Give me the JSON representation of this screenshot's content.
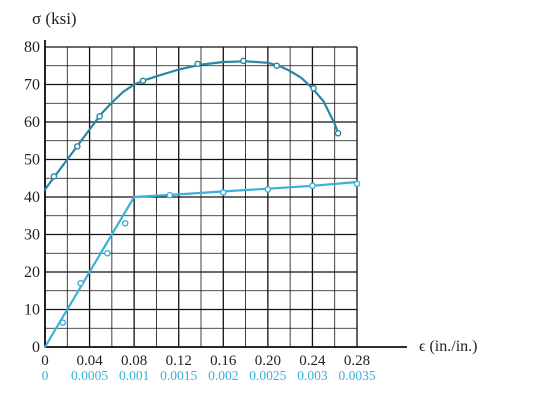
{
  "chart_data": {
    "type": "line",
    "ylabel": "σ (ksi)",
    "xlabel": "ϵ (in./in.)",
    "ylim": [
      0,
      80
    ],
    "yticks": [
      0,
      10,
      20,
      30,
      40,
      50,
      60,
      70,
      80
    ],
    "xlim_upper": [
      0,
      0.28
    ],
    "xticks_upper": [
      0,
      0.04,
      0.08,
      0.12,
      0.16,
      0.2,
      0.24,
      0.28
    ],
    "xtick_labels_upper": [
      "0",
      "0.04",
      "0.08",
      "0.12",
      "0.16",
      "0.20",
      "0.24",
      "0.28"
    ],
    "xlim_lower": [
      0,
      0.0035
    ],
    "xticks_lower": [
      0,
      0.0005,
      0.001,
      0.0015,
      0.002,
      0.0025,
      0.003,
      0.0035
    ],
    "xtick_labels_lower": [
      "0",
      "0.0005",
      "0.001",
      "0.0015",
      "0.002",
      "0.0025",
      "0.003",
      "0.0035"
    ],
    "grid": true,
    "colors": {
      "upper_curve": "#2a86a6",
      "lower_curve": "#3bb0d8",
      "grid": "#111111",
      "axis_text": "#222222",
      "lower_axis_text": "#3bb0d8"
    },
    "series": [
      {
        "axis": "upper",
        "color": "#2a86a6",
        "curve": [
          [
            0,
            42
          ],
          [
            0.01,
            46
          ],
          [
            0.02,
            50
          ],
          [
            0.03,
            54
          ],
          [
            0.04,
            58
          ],
          [
            0.05,
            62
          ],
          [
            0.06,
            65.2
          ],
          [
            0.07,
            68
          ],
          [
            0.08,
            70
          ],
          [
            0.09,
            71.2
          ],
          [
            0.1,
            72.2
          ],
          [
            0.12,
            74
          ],
          [
            0.14,
            75.3
          ],
          [
            0.16,
            76
          ],
          [
            0.18,
            76.2
          ],
          [
            0.2,
            75.8
          ],
          [
            0.21,
            75
          ],
          [
            0.22,
            73.6
          ],
          [
            0.23,
            71.8
          ],
          [
            0.24,
            69
          ],
          [
            0.25,
            65.5
          ],
          [
            0.255,
            62.5
          ],
          [
            0.26,
            59.5
          ],
          [
            0.263,
            57
          ]
        ],
        "points": [
          [
            0.008,
            45.5
          ],
          [
            0.029,
            53.5
          ],
          [
            0.049,
            61.5
          ],
          [
            0.088,
            71
          ],
          [
            0.137,
            75.5
          ],
          [
            0.178,
            76.3
          ],
          [
            0.208,
            75
          ],
          [
            0.241,
            69
          ],
          [
            0.263,
            57
          ]
        ]
      },
      {
        "axis": "lower",
        "color": "#3bb0d8",
        "curve": [
          [
            0,
            0
          ],
          [
            0.001,
            40
          ],
          [
            0.0015,
            40.7
          ],
          [
            0.002,
            41.5
          ],
          [
            0.0025,
            42.2
          ],
          [
            0.003,
            43
          ],
          [
            0.0035,
            44
          ]
        ],
        "points": [
          [
            0.0002,
            6.5
          ],
          [
            0.0004,
            17
          ],
          [
            0.0007,
            25
          ],
          [
            0.0009,
            33
          ],
          [
            0.0014,
            40.5
          ],
          [
            0.002,
            41.2
          ],
          [
            0.0025,
            42
          ],
          [
            0.003,
            43
          ],
          [
            0.0035,
            43.5
          ]
        ]
      }
    ]
  }
}
